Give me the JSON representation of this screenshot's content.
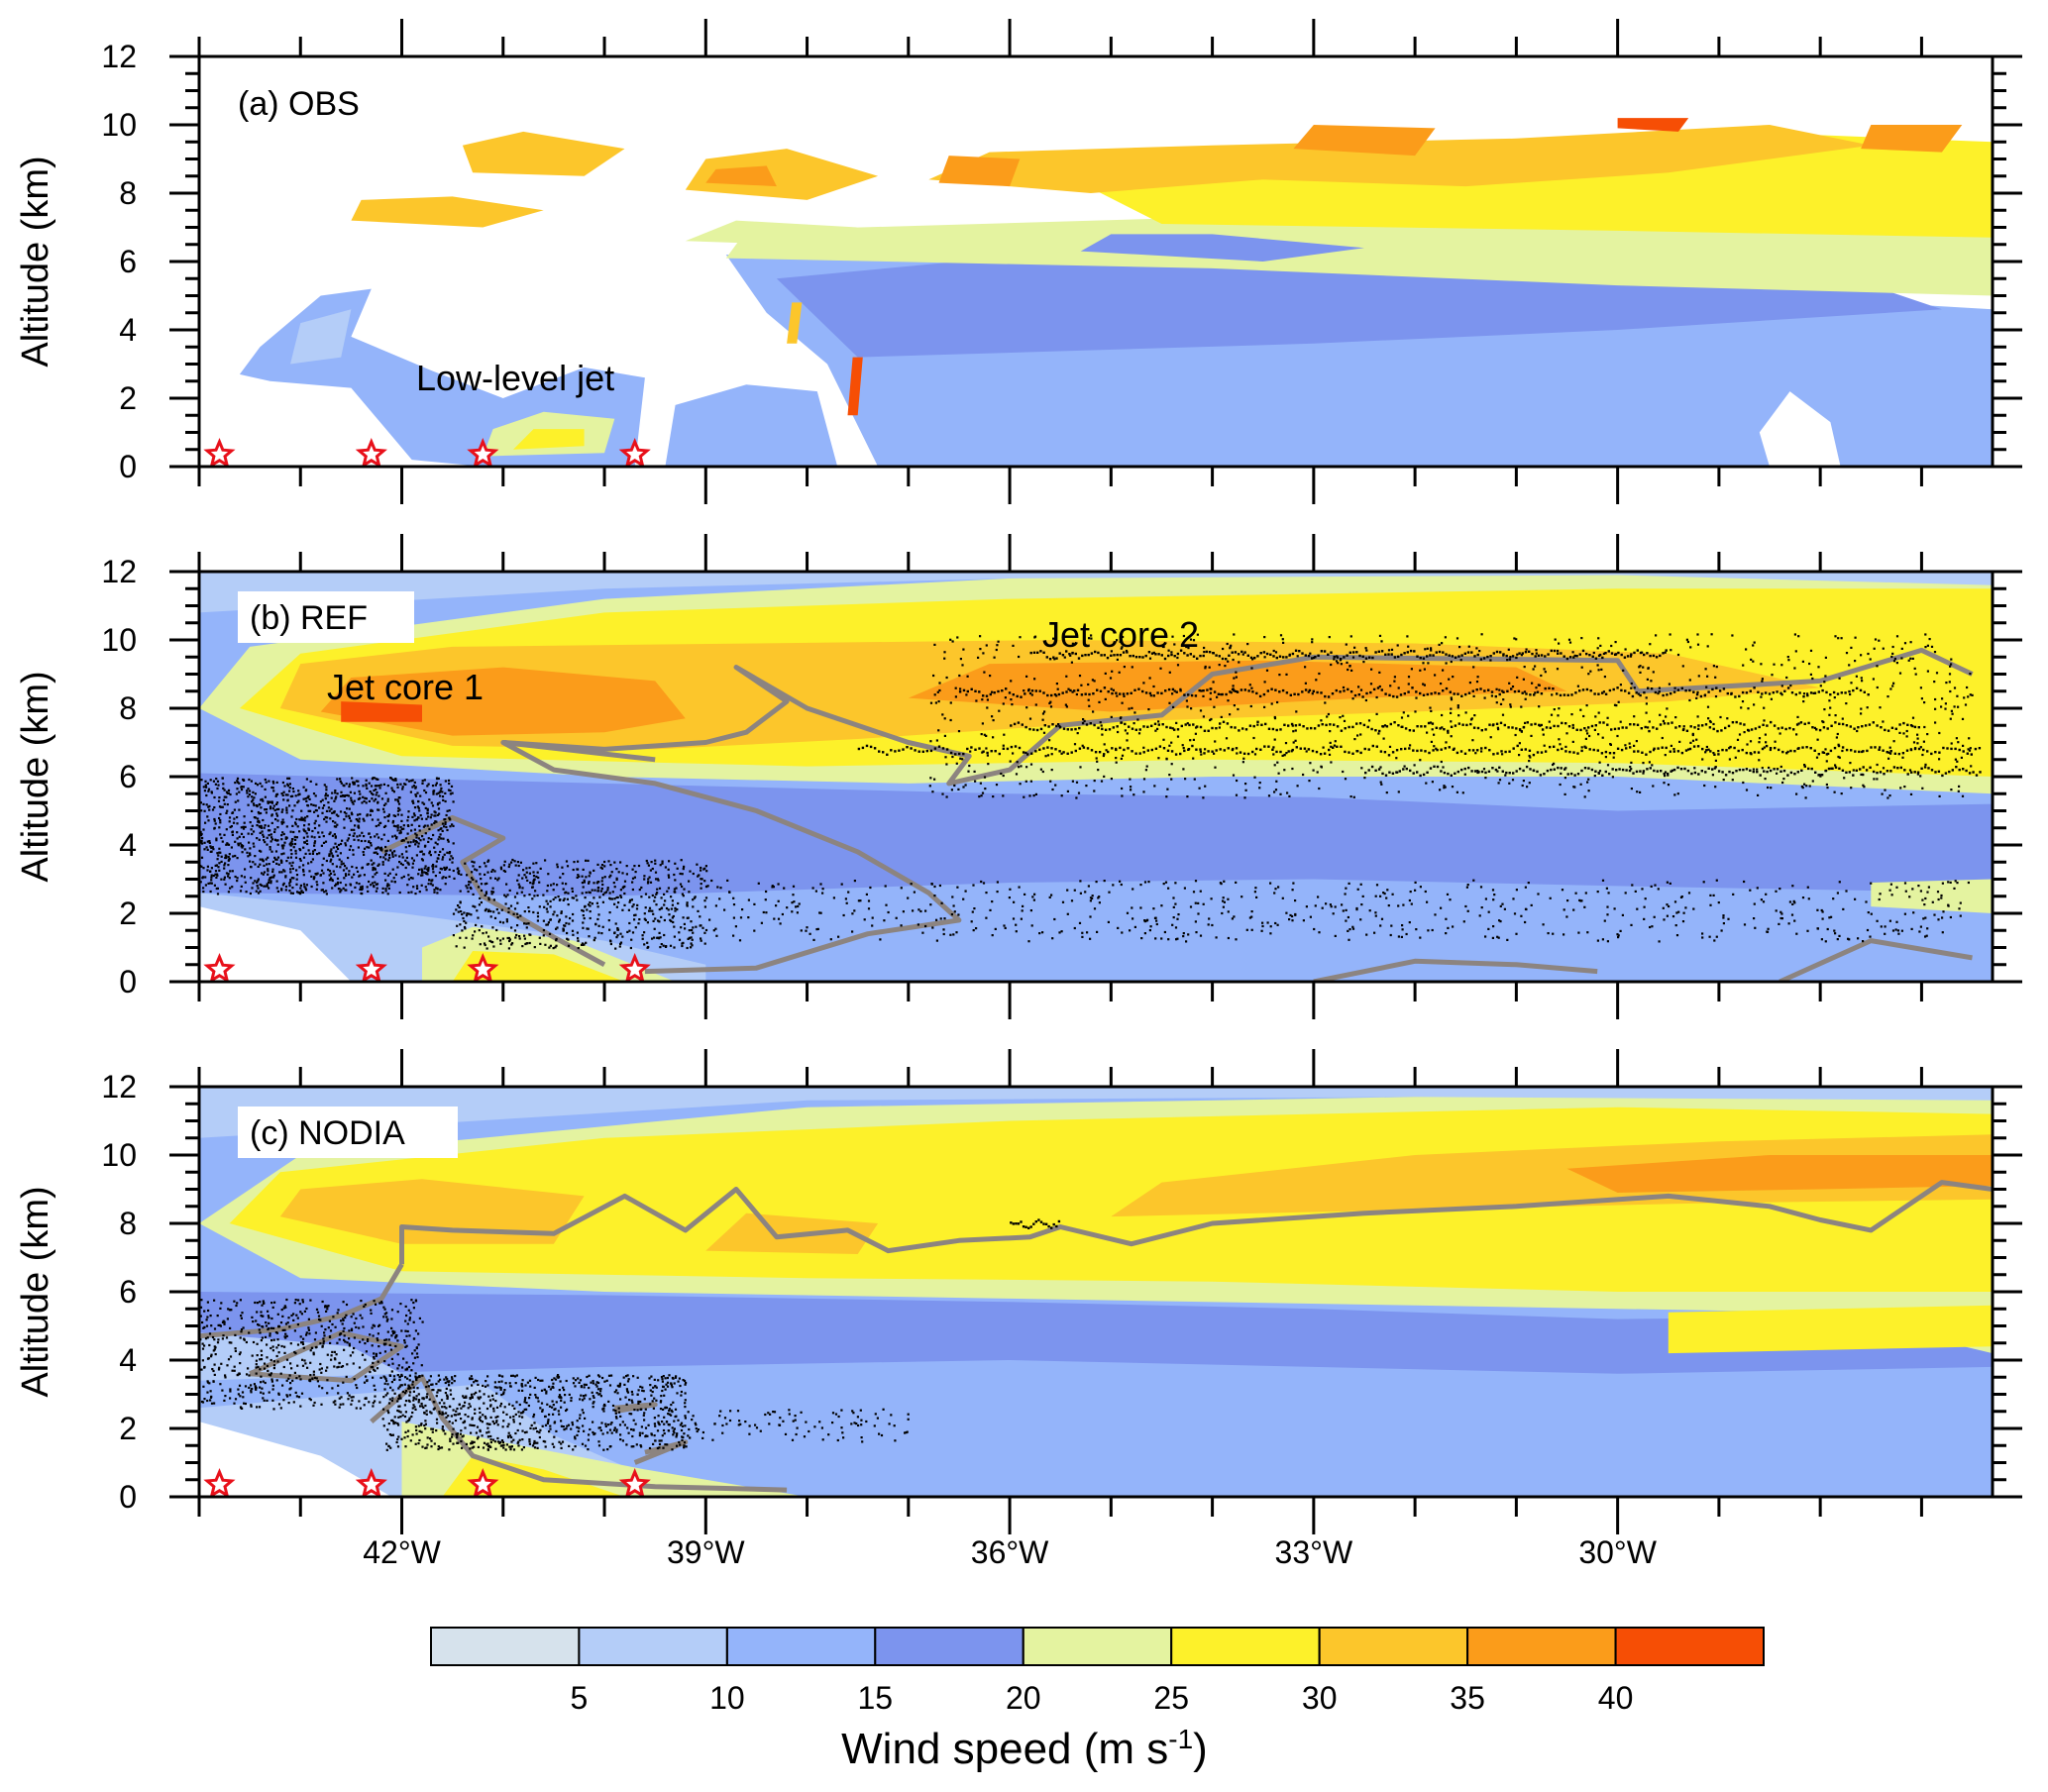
{
  "chart_data": {
    "type": "heatmap",
    "x_axis": {
      "label": "",
      "range_lon": [
        -44.0,
        -26.3
      ],
      "major_ticks": [
        -42,
        -39,
        -36,
        -33,
        -30
      ],
      "tick_labels": [
        "42°W",
        "39°W",
        "36°W",
        "33°W",
        "30°W"
      ],
      "minor_step": 1
    },
    "y_axis": {
      "label": "Altitude (km)",
      "range": [
        0,
        12
      ],
      "ticks": [
        0,
        2,
        4,
        6,
        8,
        10,
        12
      ],
      "tick_labels": [
        "0",
        "2",
        "4",
        "6",
        "8",
        "10",
        "12"
      ]
    },
    "stations_lon": [
      -43.8,
      -42.3,
      -41.2,
      -39.7
    ],
    "panels": [
      {
        "id": "a",
        "title": "(a) OBS",
        "annotations": [
          {
            "text": "Low-level jet",
            "lon": -40.7,
            "alt": 2.5
          }
        ],
        "contour": false,
        "dots": false,
        "description_bands": [
          {
            "alt_range": [
              0,
              5
            ],
            "lon_range": [
              -40.0,
              -26.3
            ],
            "speed_class": "10-20"
          },
          {
            "alt_range": [
              5,
              7.5
            ],
            "lon_range": [
              -38.8,
              -26.3
            ],
            "speed_class": "20-30"
          },
          {
            "alt_range": [
              7,
              10
            ],
            "lon_range": [
              -42.5,
              -26.3
            ],
            "speed_class": "25-40"
          }
        ]
      },
      {
        "id": "b",
        "title": "(b) REF",
        "annotations": [
          {
            "text": "Jet core 1",
            "lon": -41.5,
            "alt": 8.6
          },
          {
            "text": "Jet core 2",
            "lon": -35.3,
            "alt": 10.0
          }
        ],
        "contour": true,
        "dots": true,
        "jet_cores": [
          {
            "lon": -42.2,
            "alt": 7.9,
            "max_speed": 40
          },
          {
            "lon": -35.5,
            "alt": 8.6,
            "max_speed": 35
          }
        ]
      },
      {
        "id": "c",
        "title": "(c) NODIA",
        "annotations": [],
        "contour": true,
        "dots": true,
        "jet_cores": [
          {
            "lon": -42.0,
            "alt": 8.2,
            "max_speed": 35
          },
          {
            "lon": -28.0,
            "alt": 9.4,
            "max_speed": 35
          }
        ]
      }
    ],
    "colorbar": {
      "title_prefix": "Wind speed (m s",
      "title_sup": "-1",
      "title_suffix": ")",
      "levels": [
        5,
        10,
        15,
        20,
        25,
        30,
        35,
        40
      ],
      "level_labels": [
        "5",
        "10",
        "15",
        "20",
        "25",
        "30",
        "35",
        "40"
      ],
      "colors": [
        "#d6e2ec",
        "#b4cdf8",
        "#94b4fa",
        "#7c94ee",
        "#e4f3a0",
        "#fdf12a",
        "#fcc62b",
        "#fb9c1a",
        "#f64e05"
      ]
    },
    "contour_color": "#8c8480"
  }
}
